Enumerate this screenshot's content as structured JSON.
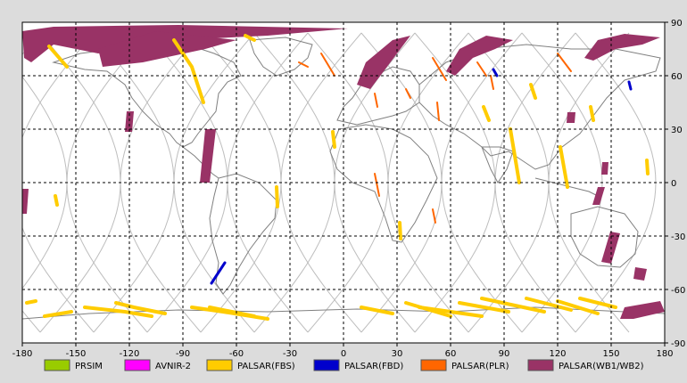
{
  "map": {
    "x_ticks": [
      "-180",
      "-150",
      "-120",
      "-90",
      "-60",
      "-30",
      "0",
      "30",
      "60",
      "90",
      "120",
      "150",
      "180"
    ],
    "y_ticks": [
      "90",
      "60",
      "30",
      "0",
      "-30",
      "-60",
      "-90"
    ],
    "x_range": [
      -180,
      180
    ],
    "y_range": [
      -90,
      90
    ],
    "grid": true,
    "colors": {
      "background": "#ffffff",
      "frame_bg": "#dcdcdc",
      "coastline": "#808080",
      "orbit_track": "#bdbdbd",
      "grid": "#000000"
    }
  },
  "legend": {
    "items": [
      {
        "label": "PRSIM",
        "color": "#99cc00"
      },
      {
        "label": "AVNIR-2",
        "color": "#ff00ff"
      },
      {
        "label": "PALSAR(FBS)",
        "color": "#ffcc00"
      },
      {
        "label": "PALSAR(FBD)",
        "color": "#0000cc"
      },
      {
        "label": "PALSAR(PLR)",
        "color": "#ff6600"
      },
      {
        "label": "PALSAR(WB1/WB2)",
        "color": "#993366"
      }
    ]
  }
}
